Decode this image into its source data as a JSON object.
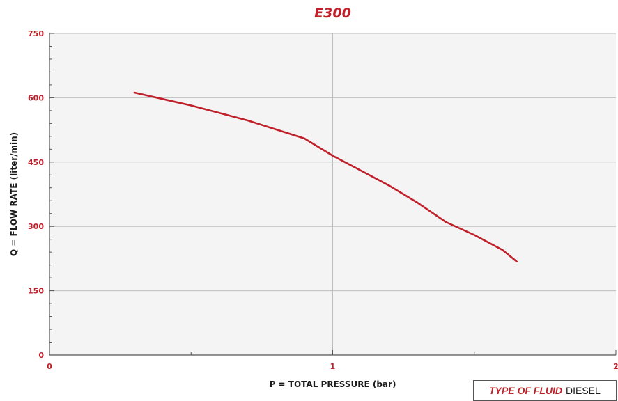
{
  "colors": {
    "accent": "#c0202a",
    "curve": "#c0202a",
    "grid": "#bdbdbd",
    "axis": "#555555"
  },
  "fluid_box": {
    "key": "TYPE OF FLUID",
    "value": "DIESEL"
  },
  "chart_data": {
    "type": "line",
    "title": "E300",
    "xlabel": "P = TOTAL PRESSURE (bar)",
    "ylabel": "Q = FLOW RATE (liter/min)",
    "xlim": [
      0,
      2
    ],
    "ylim": [
      0,
      750
    ],
    "x_ticks": [
      0,
      1,
      2
    ],
    "x_tick_labels": [
      "0",
      "1",
      "2"
    ],
    "y_ticks": [
      0,
      150,
      300,
      450,
      600,
      750
    ],
    "y_tick_labels": [
      "0",
      "150",
      "300",
      "450",
      "600",
      "750"
    ],
    "grid": true,
    "legend": "none",
    "series": [
      {
        "x": [
          0.3,
          0.5,
          0.7,
          0.9,
          1.0,
          1.1,
          1.2,
          1.3,
          1.4,
          1.5,
          1.6,
          1.65
        ],
        "y": [
          612,
          582,
          547,
          505,
          465,
          430,
          395,
          355,
          310,
          280,
          245,
          218
        ]
      }
    ]
  }
}
